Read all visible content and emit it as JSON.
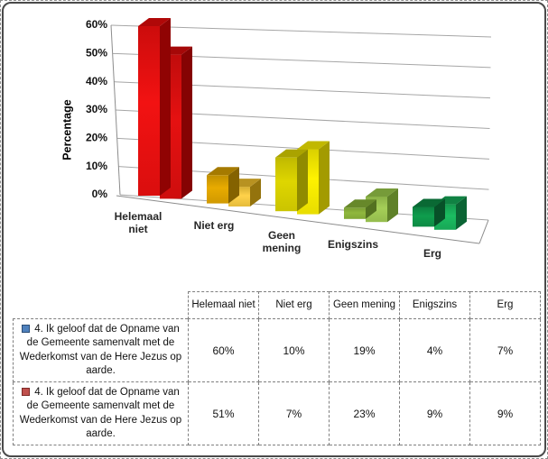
{
  "chart": {
    "y_axis_title": "Percentage",
    "y_ticks": [
      "60%",
      "50%",
      "40%",
      "30%",
      "20%",
      "10%",
      "0%"
    ]
  },
  "chart_data": {
    "type": "bar",
    "projection": "3d",
    "title": "",
    "ylabel": "Percentage",
    "ylim": [
      0,
      60
    ],
    "ytick_step": 10,
    "unit": "%",
    "grid": true,
    "legend_position": "table-rows",
    "categories": [
      "Helemaal niet",
      "Niet erg",
      "Geen mening",
      "Enigszins",
      "Erg"
    ],
    "category_label_lines": [
      [
        "Helemaal",
        "niet"
      ],
      [
        "Niet erg"
      ],
      [
        "Geen",
        "mening"
      ],
      [
        "Enigszins"
      ],
      [
        "Erg"
      ]
    ],
    "series": [
      {
        "name": "4. Ik geloof dat de Opname van de Gemeente samenvalt met de Wederkomst van de Here Jezus op aarde.",
        "marker_color": "#4f81bd",
        "values": [
          60,
          10,
          19,
          4,
          7
        ]
      },
      {
        "name": "4. Ik geloof dat de Opname van de Gemeente samenvalt met de Wederkomst van de Here Jezus op aarde.",
        "marker_color": "#c0504d",
        "values": [
          51,
          7,
          23,
          9,
          9
        ]
      }
    ],
    "category_colors": [
      {
        "s1": [
          "#f21212",
          "#7a0000"
        ],
        "s2": [
          "#e51111",
          "#700000"
        ]
      },
      {
        "s1": [
          "#e8ab00",
          "#6e5200"
        ],
        "s2": [
          "#ffd24a",
          "#7d5e00"
        ]
      },
      {
        "s1": [
          "#ded600",
          "#7f7a00"
        ],
        "s2": [
          "#fef200",
          "#8f8800"
        ]
      },
      {
        "s1": [
          "#90b83e",
          "#46611a"
        ],
        "s2": [
          "#a5cf58",
          "#50701f"
        ]
      },
      {
        "s1": [
          "#0f9d4d",
          "#053f20"
        ],
        "s2": [
          "#1bbd61",
          "#07512a"
        ]
      }
    ],
    "gridline_color": "#a6a6a6",
    "axis_color": "#8c8c8c"
  },
  "table": {
    "headers": [
      "Helemaal niet",
      "Niet erg",
      "Geen mening",
      "Enigszins",
      "Erg"
    ],
    "rows": [
      {
        "marker_color": "#4f81bd",
        "marker_border": "#2c4d75",
        "label": "4. Ik geloof dat de Opname van de Gemeente samenvalt met de Wederkomst van de Here Jezus op aarde.",
        "values": [
          "60%",
          "10%",
          "19%",
          "4%",
          "7%"
        ]
      },
      {
        "marker_color": "#c0504d",
        "marker_border": "#7d2a27",
        "label": "4. Ik geloof dat de Opname van de Gemeente samenvalt met de Wederkomst van de Here Jezus op aarde.",
        "values": [
          "51%",
          "7%",
          "23%",
          "9%",
          "9%"
        ]
      }
    ]
  }
}
